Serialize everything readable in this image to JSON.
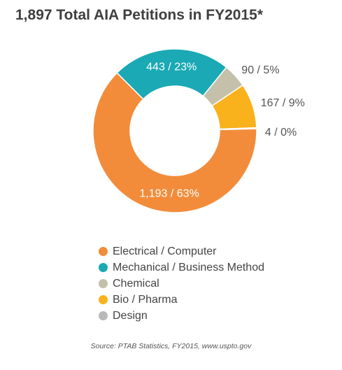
{
  "chart_data": {
    "type": "pie",
    "title": "1,897 Total AIA Petitions in FY2015*",
    "total": 1897,
    "slices": [
      {
        "name": "Electrical / Computer",
        "value": 1193,
        "percent": 63,
        "label": "1,193 / 63%",
        "color": "#F28C3A"
      },
      {
        "name": "Mechanical / Business Method",
        "value": 443,
        "percent": 23,
        "label": "443 / 23%",
        "color": "#1AA9B5"
      },
      {
        "name": "Chemical",
        "value": 90,
        "percent": 5,
        "label": "90 / 5%",
        "color": "#C4C0AA"
      },
      {
        "name": "Bio / Pharma",
        "value": 167,
        "percent": 9,
        "label": "167 / 9%",
        "color": "#F9B21B"
      },
      {
        "name": "Design",
        "value": 4,
        "percent": 0,
        "label": "4 / 0%",
        "color": "#B9B9B9"
      }
    ],
    "legend_position": "bottom",
    "source": "Source: PTAB Statistics, FY2015, www.uspto.gov"
  }
}
